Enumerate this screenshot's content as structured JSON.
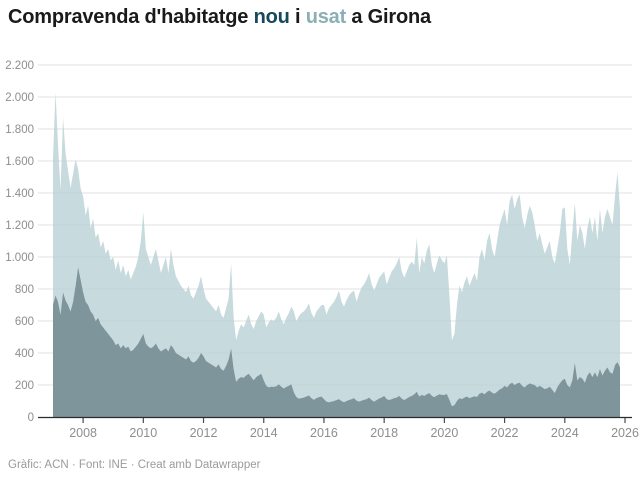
{
  "title": {
    "prefix": "Compravenda d'habitatge ",
    "word_nou": "nou",
    "middle": " i ",
    "word_usat": "usat",
    "suffix": " a Girona"
  },
  "footer": {
    "text": "Gràfic: ACN · Font: INE · Creat amb Datawrapper"
  },
  "colors": {
    "nou_area": "#7f959c",
    "usat_area": "#c9dcdd",
    "usat_area_base": "#b9d1d4",
    "title_nou": "#17495c",
    "title_usat": "#8aafb6",
    "grid": "#e2e2e2",
    "axis_line": "#2b2b2b",
    "tick_mark": "#4a4a4a",
    "tick_label": "#8e8e8e",
    "footer_text": "#9b9b9b"
  },
  "chart_data": {
    "type": "area",
    "stacked": true,
    "title": "Compravenda d'habitatge nou i usat a Girona",
    "xlabel": "",
    "ylabel": "",
    "x_start": "2007-01",
    "x_end": "2025-11",
    "x_step": "month",
    "ylim": [
      0,
      2200
    ],
    "grid": true,
    "legend_position": "in-title",
    "x_ticks": [
      2008,
      2010,
      2012,
      2014,
      2016,
      2018,
      2020,
      2022,
      2024,
      2026
    ],
    "y_ticks": [
      0,
      200,
      400,
      600,
      800,
      1000,
      1200,
      1400,
      1600,
      1800,
      2000,
      2200
    ],
    "y_tick_labels": [
      "0",
      "200",
      "400",
      "600",
      "800",
      "1.000",
      "1.200",
      "1.400",
      "1.600",
      "1.800",
      "2.000",
      "2.200"
    ],
    "series": [
      {
        "name": "nou",
        "values": [
          700,
          760,
          720,
          640,
          780,
          730,
          700,
          660,
          720,
          820,
          937,
          860,
          780,
          720,
          700,
          660,
          640,
          600,
          620,
          580,
          560,
          540,
          520,
          500,
          480,
          450,
          460,
          430,
          450,
          430,
          440,
          410,
          420,
          440,
          460,
          490,
          520,
          460,
          440,
          430,
          440,
          460,
          430,
          410,
          420,
          430,
          410,
          450,
          430,
          400,
          390,
          380,
          370,
          360,
          380,
          350,
          340,
          350,
          370,
          400,
          380,
          350,
          340,
          330,
          320,
          310,
          330,
          300,
          290,
          320,
          360,
          430,
          300,
          220,
          240,
          250,
          245,
          260,
          270,
          250,
          230,
          250,
          260,
          270,
          230,
          195,
          185,
          190,
          188,
          192,
          205,
          190,
          178,
          188,
          195,
          205,
          155,
          125,
          115,
          118,
          122,
          128,
          135,
          118,
          108,
          118,
          124,
          128,
          112,
          96,
          92,
          96,
          100,
          106,
          112,
          100,
          92,
          100,
          106,
          112,
          118,
          102,
          96,
          102,
          108,
          112,
          122,
          106,
          96,
          106,
          116,
          122,
          132,
          112,
          106,
          112,
          118,
          122,
          132,
          116,
          106,
          116,
          126,
          132,
          142,
          158,
          128,
          138,
          132,
          142,
          150,
          132,
          124,
          134,
          142,
          138,
          138,
          144,
          108,
          68,
          74,
          100,
          118,
          112,
          122,
          128,
          118,
          124,
          130,
          126,
          146,
          152,
          142,
          158,
          166,
          152,
          146,
          158,
          172,
          180,
          195,
          185,
          205,
          215,
          200,
          210,
          215,
          195,
          185,
          200,
          210,
          205,
          200,
          185,
          195,
          185,
          175,
          180,
          190,
          170,
          150,
          185,
          210,
          230,
          240,
          200,
          185,
          230,
          340,
          230,
          250,
          240,
          215,
          260,
          280,
          250,
          280,
          250,
          300,
          260,
          290,
          310,
          280,
          270,
          325,
          344,
          310
        ]
      },
      {
        "name": "usat",
        "values": [
          920,
          1270,
          980,
          780,
          1090,
          920,
          840,
          770,
          800,
          790,
          613,
          570,
          600,
          540,
          620,
          520,
          600,
          520,
          530,
          480,
          540,
          480,
          530,
          480,
          520,
          470,
          520,
          470,
          500,
          450,
          480,
          450,
          480,
          500,
          540,
          610,
          760,
          590,
          560,
          520,
          560,
          590,
          550,
          490,
          530,
          570,
          490,
          600,
          520,
          480,
          460,
          440,
          430,
          420,
          440,
          410,
          400,
          430,
          450,
          480,
          420,
          390,
          380,
          370,
          360,
          350,
          370,
          340,
          330,
          360,
          380,
          530,
          320,
          260,
          300,
          330,
          315,
          340,
          370,
          330,
          320,
          350,
          370,
          390,
          410,
          365,
          405,
          420,
          412,
          428,
          455,
          420,
          402,
          432,
          455,
          485,
          505,
          475,
          515,
          532,
          538,
          552,
          575,
          532,
          512,
          542,
          556,
          572,
          588,
          544,
          588,
          604,
          620,
          644,
          678,
          620,
          598,
          630,
          654,
          668,
          672,
          618,
          674,
          708,
          722,
          748,
          778,
          724,
          694,
          724,
          754,
          768,
          778,
          718,
          764,
          798,
          812,
          838,
          868,
          794,
          764,
          794,
          824,
          838,
          808,
          962,
          772,
          862,
          828,
          898,
          930,
          818,
          776,
          826,
          868,
          842,
          822,
          866,
          652,
          412,
          446,
          600,
          702,
          668,
          718,
          752,
          702,
          736,
          770,
          724,
          854,
          898,
          838,
          942,
          984,
          898,
          854,
          942,
          1028,
          1070,
          1105,
          1015,
          1145,
          1175,
          1100,
          1150,
          1175,
          1055,
          995,
          1060,
          1110,
          1075,
          1000,
          915,
          955,
          895,
          845,
          880,
          910,
          830,
          810,
          865,
          940,
          1070,
          1070,
          850,
          765,
          920,
          1000,
          870,
          950,
          910,
          835,
          920,
          970,
          900,
          970,
          850,
          1000,
          890,
          960,
          990,
          970,
          930,
          1055,
          1186,
          990
        ]
      }
    ]
  }
}
